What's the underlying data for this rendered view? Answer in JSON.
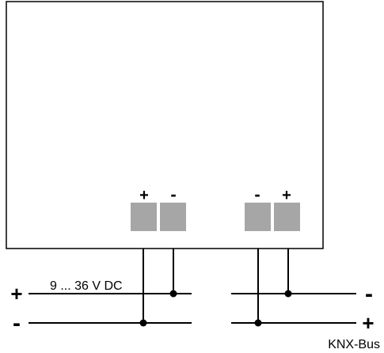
{
  "device": {
    "terminals": [
      {
        "id": "supply-plus",
        "sign": "+"
      },
      {
        "id": "supply-minus",
        "sign": "-"
      },
      {
        "id": "bus-minus",
        "sign": "-"
      },
      {
        "id": "bus-plus",
        "sign": "+"
      }
    ]
  },
  "supply": {
    "voltage_label": "9 ... 36 V DC",
    "line_plus_sign": "+",
    "line_minus_sign": "-"
  },
  "bus": {
    "name": "KNX-Bus",
    "line_minus_sign": "-",
    "line_plus_sign": "+"
  },
  "colors": {
    "terminal_fill": "#a6a6a6",
    "line": "#000000",
    "outline": "#000000"
  }
}
